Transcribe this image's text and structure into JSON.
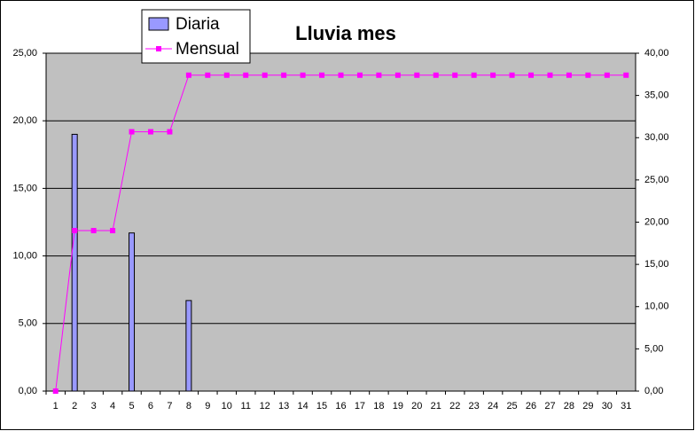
{
  "chart_data": {
    "type": "combo",
    "title": "Lluvia mes",
    "categories": [
      "1",
      "2",
      "3",
      "4",
      "5",
      "6",
      "7",
      "8",
      "9",
      "10",
      "11",
      "12",
      "13",
      "14",
      "15",
      "16",
      "17",
      "18",
      "19",
      "20",
      "21",
      "22",
      "23",
      "24",
      "25",
      "26",
      "27",
      "28",
      "29",
      "30",
      "31"
    ],
    "series": [
      {
        "name": "Diaria",
        "type": "bar",
        "color": "#9999ff",
        "axis": "y",
        "values": [
          0,
          19,
          0,
          0,
          11.7,
          0,
          0,
          6.7,
          0,
          0,
          0,
          0,
          0,
          0,
          0,
          0,
          0,
          0,
          0,
          0,
          0,
          0,
          0,
          0,
          0,
          0,
          0,
          0,
          0,
          0,
          0
        ]
      },
      {
        "name": "Mensual",
        "type": "line",
        "color": "#ff00ff",
        "axis": "y2",
        "values": [
          0,
          19,
          19,
          19,
          30.7,
          30.7,
          30.7,
          37.4,
          37.4,
          37.4,
          37.4,
          37.4,
          37.4,
          37.4,
          37.4,
          37.4,
          37.4,
          37.4,
          37.4,
          37.4,
          37.4,
          37.4,
          37.4,
          37.4,
          37.4,
          37.4,
          37.4,
          37.4,
          37.4,
          37.4,
          37.4
        ]
      }
    ],
    "ylim": [
      0,
      25
    ],
    "yticks": [
      {
        "value": 0,
        "label": "0,00"
      },
      {
        "value": 5,
        "label": "5,00"
      },
      {
        "value": 10,
        "label": "10,00"
      },
      {
        "value": 15,
        "label": "15,00"
      },
      {
        "value": 20,
        "label": "20,00"
      },
      {
        "value": 25,
        "label": "25,00"
      }
    ],
    "y2lim": [
      0,
      40
    ],
    "y2ticks": [
      {
        "value": 0,
        "label": "0,00"
      },
      {
        "value": 5,
        "label": "5,00"
      },
      {
        "value": 10,
        "label": "10,00"
      },
      {
        "value": 15,
        "label": "15,00"
      },
      {
        "value": 20,
        "label": "20,00"
      },
      {
        "value": 25,
        "label": "25,00"
      },
      {
        "value": 30,
        "label": "30,00"
      },
      {
        "value": 35,
        "label": "35,00"
      },
      {
        "value": 40,
        "label": "40,00"
      }
    ],
    "grid": true,
    "plot_background": "#c0c0c0",
    "legend": "top-left"
  }
}
